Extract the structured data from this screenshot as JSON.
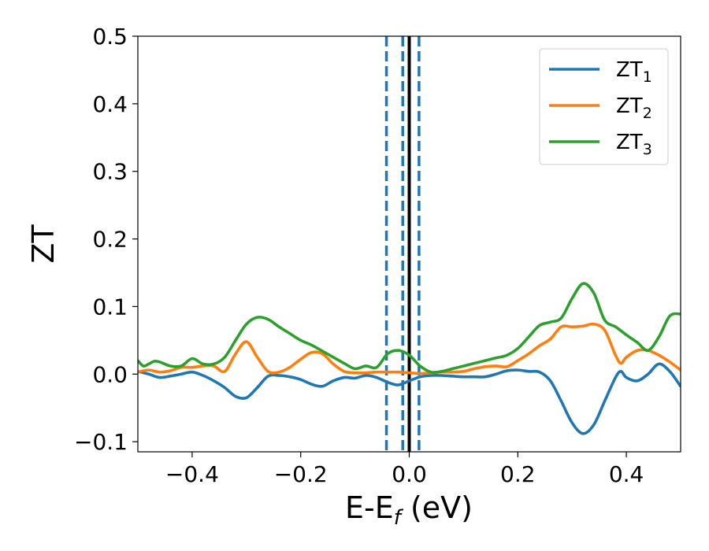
{
  "chart_data": {
    "type": "line",
    "title": "",
    "xlabel": {
      "base": "E-E",
      "sub": "f",
      "suffix": " (eV)"
    },
    "ylabel": "ZT",
    "xlim": [
      -0.5,
      0.5
    ],
    "ylim": [
      -0.115,
      0.5
    ],
    "xticks": [
      -0.4,
      -0.2,
      0.0,
      0.2,
      0.4
    ],
    "xtick_labels": [
      "−0.4",
      "−0.2",
      "0.0",
      "0.2",
      "0.4"
    ],
    "yticks": [
      -0.1,
      0.0,
      0.1,
      0.2,
      0.3,
      0.4,
      0.5
    ],
    "ytick_labels": [
      "−0.1",
      "0.0",
      "0.1",
      "0.2",
      "0.3",
      "0.4",
      "0.5"
    ],
    "grid": false,
    "legend_position": "top-right",
    "vertical_lines": [
      {
        "x": 0.0,
        "color": "#000000",
        "style": "solid"
      },
      {
        "x": -0.042,
        "color": "#1f77b4",
        "style": "dashed"
      },
      {
        "x": -0.012,
        "color": "#1f77b4",
        "style": "dashed"
      },
      {
        "x": 0.018,
        "color": "#1f77b4",
        "style": "dashed"
      }
    ],
    "series": [
      {
        "name": "ZT",
        "sub": "1",
        "color": "#1f77b4",
        "x": [
          -0.5,
          -0.48,
          -0.46,
          -0.44,
          -0.42,
          -0.4,
          -0.38,
          -0.36,
          -0.34,
          -0.32,
          -0.3,
          -0.28,
          -0.26,
          -0.24,
          -0.22,
          -0.2,
          -0.18,
          -0.16,
          -0.14,
          -0.12,
          -0.1,
          -0.08,
          -0.06,
          -0.04,
          -0.02,
          0.0,
          0.02,
          0.04,
          0.06,
          0.08,
          0.1,
          0.12,
          0.14,
          0.16,
          0.18,
          0.2,
          0.22,
          0.24,
          0.26,
          0.28,
          0.3,
          0.32,
          0.34,
          0.36,
          0.38,
          0.39,
          0.4,
          0.42,
          0.44,
          0.46,
          0.48,
          0.5
        ],
        "y": [
          0.004,
          0.0,
          -0.005,
          -0.003,
          0.0,
          0.003,
          -0.002,
          -0.01,
          -0.02,
          -0.033,
          -0.035,
          -0.02,
          -0.003,
          -0.002,
          -0.004,
          -0.008,
          -0.015,
          -0.018,
          -0.01,
          -0.005,
          -0.006,
          -0.002,
          -0.005,
          -0.012,
          -0.016,
          -0.01,
          -0.004,
          -0.002,
          -0.002,
          -0.003,
          -0.004,
          -0.004,
          -0.004,
          0.0,
          0.005,
          0.006,
          0.004,
          0.003,
          -0.01,
          -0.04,
          -0.072,
          -0.088,
          -0.075,
          -0.04,
          -0.005,
          0.004,
          -0.005,
          -0.01,
          0.0,
          0.015,
          0.004,
          -0.018
        ]
      },
      {
        "name": "ZT",
        "sub": "2",
        "color": "#ff7f0e",
        "x": [
          -0.5,
          -0.48,
          -0.46,
          -0.44,
          -0.42,
          -0.4,
          -0.38,
          -0.36,
          -0.34,
          -0.32,
          -0.3,
          -0.28,
          -0.26,
          -0.24,
          -0.22,
          -0.2,
          -0.18,
          -0.16,
          -0.14,
          -0.12,
          -0.1,
          -0.08,
          -0.06,
          -0.04,
          -0.02,
          0.0,
          0.02,
          0.04,
          0.06,
          0.08,
          0.1,
          0.12,
          0.14,
          0.16,
          0.18,
          0.2,
          0.22,
          0.24,
          0.26,
          0.28,
          0.3,
          0.32,
          0.34,
          0.36,
          0.38,
          0.39,
          0.4,
          0.42,
          0.44,
          0.46,
          0.48,
          0.5
        ],
        "y": [
          0.003,
          0.006,
          0.003,
          0.005,
          0.01,
          0.01,
          0.012,
          0.012,
          0.004,
          0.03,
          0.048,
          0.025,
          0.004,
          0.003,
          0.01,
          0.022,
          0.032,
          0.03,
          0.015,
          0.004,
          0.002,
          0.002,
          0.003,
          0.003,
          0.003,
          0.002,
          0.001,
          0.002,
          0.003,
          0.003,
          0.004,
          0.008,
          0.011,
          0.012,
          0.011,
          0.02,
          0.03,
          0.042,
          0.052,
          0.07,
          0.07,
          0.071,
          0.074,
          0.065,
          0.028,
          0.016,
          0.025,
          0.035,
          0.035,
          0.028,
          0.018,
          0.006
        ]
      },
      {
        "name": "ZT",
        "sub": "3",
        "color": "#2ca02c",
        "x": [
          -0.5,
          -0.49,
          -0.48,
          -0.47,
          -0.46,
          -0.44,
          -0.42,
          -0.4,
          -0.38,
          -0.36,
          -0.34,
          -0.32,
          -0.3,
          -0.28,
          -0.26,
          -0.24,
          -0.22,
          -0.2,
          -0.18,
          -0.16,
          -0.14,
          -0.12,
          -0.1,
          -0.08,
          -0.06,
          -0.04,
          -0.02,
          0.0,
          0.02,
          0.04,
          0.06,
          0.08,
          0.1,
          0.12,
          0.14,
          0.16,
          0.18,
          0.2,
          0.22,
          0.24,
          0.26,
          0.28,
          0.3,
          0.32,
          0.34,
          0.36,
          0.38,
          0.4,
          0.42,
          0.44,
          0.46,
          0.48,
          0.5
        ],
        "y": [
          0.02,
          0.012,
          0.015,
          0.019,
          0.018,
          0.012,
          0.012,
          0.023,
          0.015,
          0.015,
          0.025,
          0.05,
          0.074,
          0.084,
          0.081,
          0.07,
          0.06,
          0.05,
          0.043,
          0.034,
          0.025,
          0.016,
          0.008,
          0.012,
          0.01,
          0.03,
          0.035,
          0.028,
          0.012,
          0.003,
          0.004,
          0.008,
          0.012,
          0.016,
          0.02,
          0.024,
          0.028,
          0.038,
          0.055,
          0.072,
          0.077,
          0.083,
          0.112,
          0.134,
          0.12,
          0.08,
          0.07,
          0.058,
          0.047,
          0.035,
          0.055,
          0.086,
          0.089
        ]
      }
    ]
  }
}
